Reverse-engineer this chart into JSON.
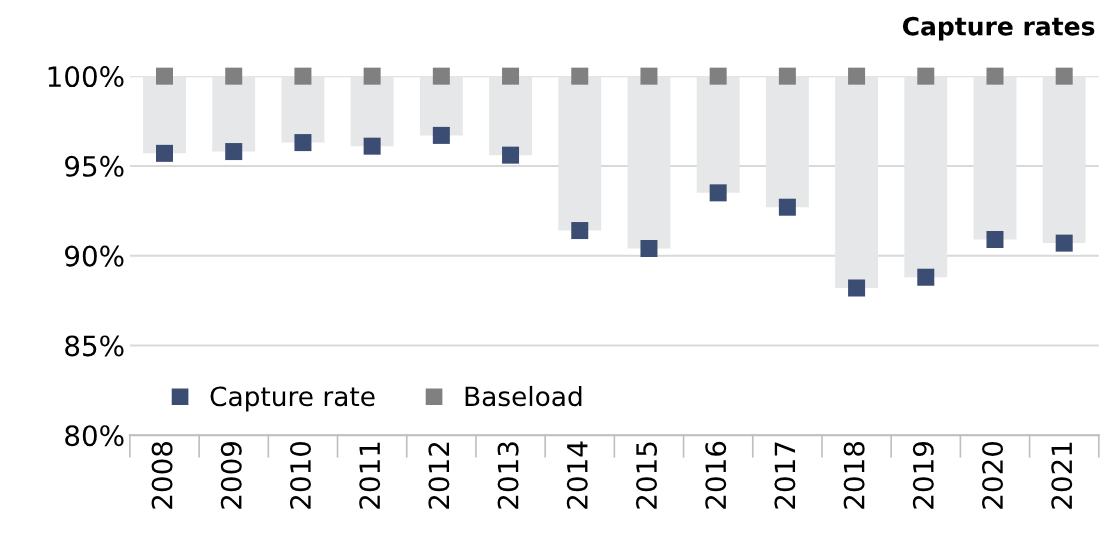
{
  "chart_data": {
    "type": "scatter",
    "title": "Capture rates",
    "categories": [
      "2008",
      "2009",
      "2010",
      "2011",
      "2012",
      "2013",
      "2014",
      "2015",
      "2016",
      "2017",
      "2018",
      "2019",
      "2020",
      "2021"
    ],
    "series": [
      {
        "type": "bar",
        "color": "#e6e7e9",
        "base": [
          95.7,
          95.8,
          96.3,
          96.1,
          96.7,
          95.6,
          91.4,
          90.4,
          93.5,
          92.7,
          88.2,
          88.8,
          90.9,
          90.7
        ],
        "values": [
          4.3,
          4.2,
          3.7,
          3.9,
          3.3,
          4.4,
          8.6,
          9.6,
          6.5,
          7.3,
          11.8,
          11.2,
          9.1,
          9.3
        ]
      },
      {
        "name": "Capture rate",
        "color": "#3b4d72",
        "values": [
          95.7,
          95.8,
          96.3,
          96.1,
          96.7,
          95.6,
          91.4,
          90.4,
          93.5,
          92.7,
          88.2,
          88.8,
          90.9,
          90.7
        ]
      },
      {
        "name": "Baseload",
        "color": "#808080",
        "values": [
          100,
          100,
          100,
          100,
          100,
          100,
          100,
          100,
          100,
          100,
          100,
          100,
          100,
          100
        ]
      }
    ],
    "ylim": [
      80,
      100
    ],
    "yticks": [
      {
        "value": 80,
        "label": "80%"
      },
      {
        "value": 85,
        "label": "85%"
      },
      {
        "value": 90,
        "label": "90%"
      },
      {
        "value": 95,
        "label": "95%"
      },
      {
        "value": 100,
        "label": "100%"
      }
    ],
    "grid": "y",
    "legend": "bottom left",
    "marker": "square"
  }
}
